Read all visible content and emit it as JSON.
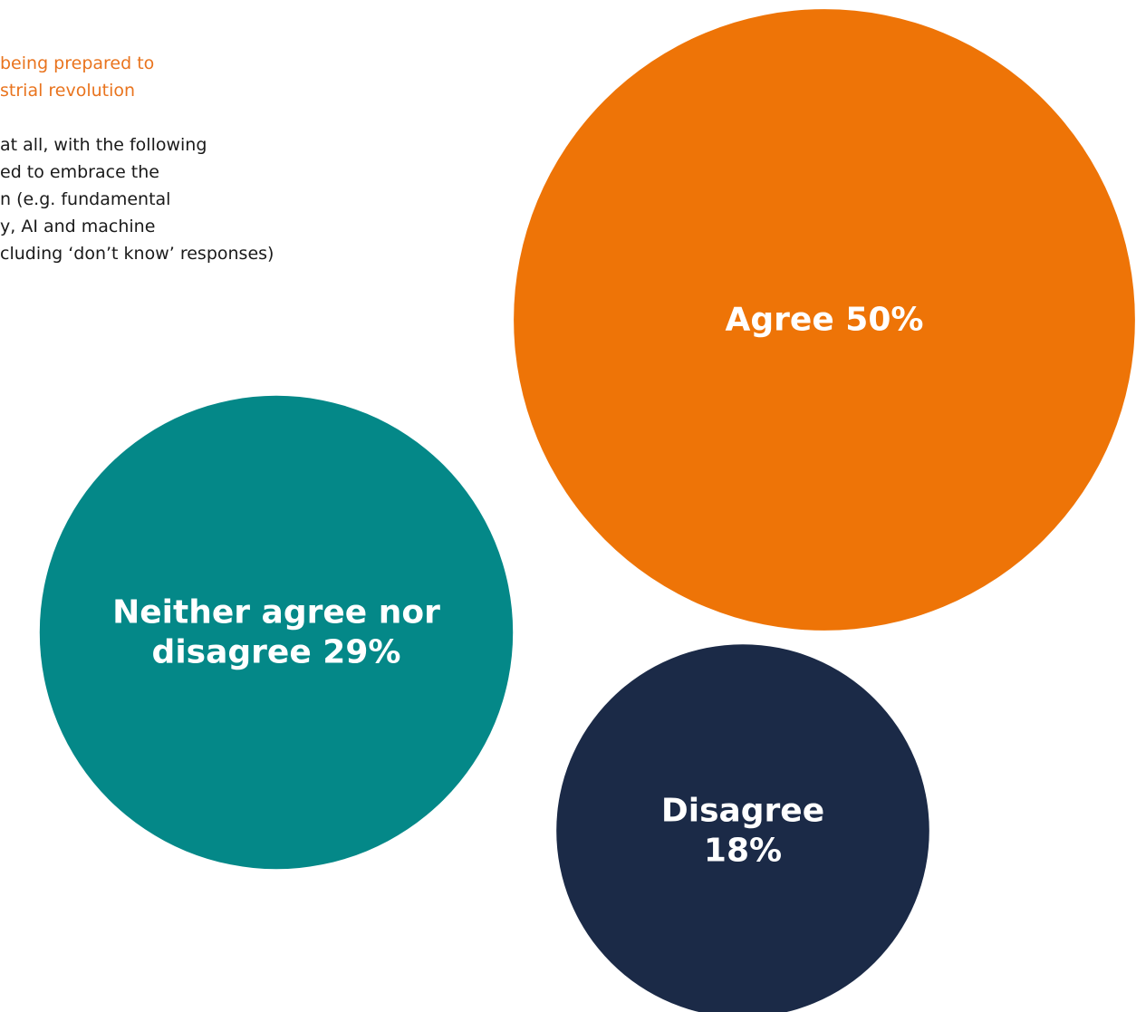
{
  "intro": {
    "heading_lines": [
      "being prepared to",
      "strial revolution"
    ],
    "body_lines": [
      "at all, with the following",
      "ed to embrace the",
      "n (e.g. fundamental",
      "y, AI and machine",
      "cluding ‘don’t know’ responses)"
    ],
    "heading_color": "#E9741E",
    "body_color": "#1a1a1a"
  },
  "chart_data": {
    "type": "bubble",
    "unit": "%",
    "series": [
      {
        "name": "Agree",
        "value": 50,
        "label_lines": [
          "Agree 50%"
        ],
        "color": "#EE7407"
      },
      {
        "name": "Neither agree nor disagree",
        "value": 29,
        "label_lines": [
          "Neither agree nor",
          "disagree 29%"
        ],
        "color": "#048888"
      },
      {
        "name": "Disagree",
        "value": 18,
        "label_lines": [
          "Disagree",
          "18%"
        ],
        "color": "#1B2A47"
      }
    ]
  }
}
